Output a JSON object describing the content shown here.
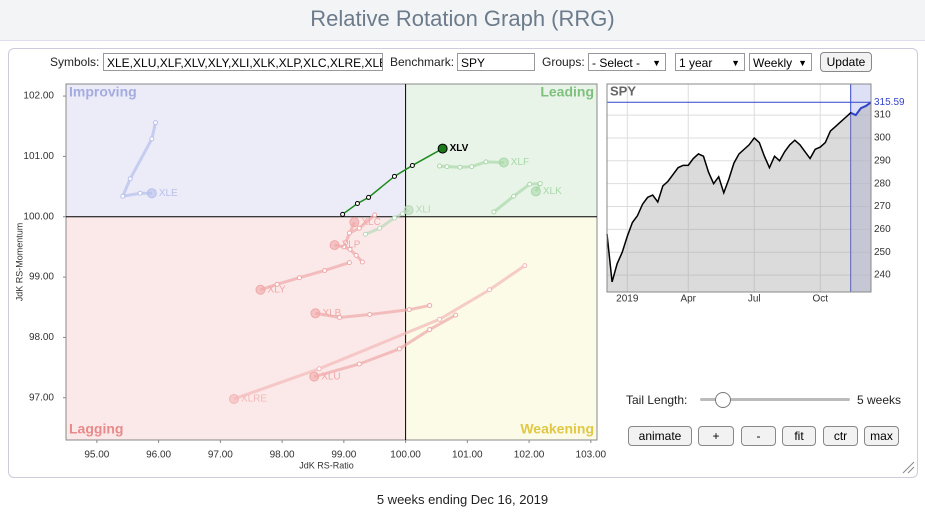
{
  "header": {
    "title": "Relative Rotation Graph (RRG)"
  },
  "controls": {
    "symbols_label": "Symbols:",
    "symbols": "XLE,XLU,XLF,XLV,XLY,XLI,XLK,XLP,XLC,XLRE,XLB",
    "benchmark_label": "Benchmark:",
    "benchmark": "SPY",
    "groups_label": "Groups:",
    "groups": "- Select -",
    "period": "1 year",
    "interval": "Weekly",
    "update": "Update",
    "tail_length_label": "Tail Length:",
    "tail_length": "5 weeks",
    "buttons": [
      "animate",
      "+",
      "-",
      "fit",
      "ctr",
      "max"
    ]
  },
  "chart_data": [
    {
      "type": "scatter",
      "xlabel": "JdK RS-Ratio",
      "ylabel": "JdK RS-Momentum",
      "quadrant_labels": {
        "top_left": "Improving",
        "top_right": "Leading",
        "bottom_left": "Lagging",
        "bottom_right": "Weakening"
      },
      "xlim": [
        94.5,
        103.1
      ],
      "ylim": [
        96.3,
        102.2
      ],
      "xticks": [
        {
          "value": 95,
          "label": "95.00"
        },
        {
          "value": 96,
          "label": "96.00"
        },
        {
          "value": 97,
          "label": "97.00"
        },
        {
          "value": 98,
          "label": "98.00"
        },
        {
          "value": 99,
          "label": "99.00"
        },
        {
          "value": 100,
          "label": "100.00"
        },
        {
          "value": 101,
          "label": "101.00"
        },
        {
          "value": 102,
          "label": "102.00"
        },
        {
          "value": 103,
          "label": "103.00"
        }
      ],
      "yticks": [
        {
          "value": 97,
          "label": "97.00"
        },
        {
          "value": 98,
          "label": "98.00"
        },
        {
          "value": 99,
          "label": "99.00"
        },
        {
          "value": 100,
          "label": "100.00"
        },
        {
          "value": 101,
          "label": "101.00"
        },
        {
          "value": 102,
          "label": "102.00"
        }
      ],
      "series": [
        {
          "name": "XLE",
          "color": "#b8c0ec",
          "x": [
            95.95,
            95.89,
            95.54,
            95.42,
            95.7,
            95.89
          ],
          "y": [
            101.56,
            101.29,
            100.63,
            100.34,
            100.39,
            100.39
          ]
        },
        {
          "name": "XLF",
          "color": "#a8d8a8",
          "x": [
            100.55,
            100.67,
            100.88,
            101.07,
            101.3,
            101.59
          ],
          "y": [
            100.84,
            100.83,
            100.82,
            100.83,
            100.91,
            100.9
          ]
        },
        {
          "name": "XLK",
          "color": "#a8d8a8",
          "x": [
            101.43,
            101.75,
            102.01,
            102.18,
            102.11
          ],
          "y": [
            100.08,
            100.34,
            100.54,
            100.55,
            100.42
          ]
        },
        {
          "name": "XLI",
          "color": "#b8d8b8",
          "x": [
            99.35,
            99.58,
            99.82,
            99.95,
            100.05
          ],
          "y": [
            99.71,
            99.81,
            99.98,
            100.05,
            100.11
          ]
        },
        {
          "name": "XLC",
          "color": "#f0a8a8",
          "x": [
            99.5,
            99.25,
            99.09,
            99.03,
            99.17
          ],
          "y": [
            100.03,
            99.81,
            99.73,
            99.57,
            99.91
          ]
        },
        {
          "name": "XLP",
          "color": "#f0a8a8",
          "x": [
            99.3,
            99.2,
            99.1,
            99.0,
            98.85
          ],
          "y": [
            99.25,
            99.36,
            99.46,
            99.5,
            99.53
          ]
        },
        {
          "name": "XLY",
          "color": "#f0a8a8",
          "x": [
            99.09,
            98.69,
            98.28,
            97.92,
            97.65
          ],
          "y": [
            99.24,
            99.11,
            98.99,
            98.88,
            98.79
          ]
        },
        {
          "name": "XLB",
          "color": "#f0a8a8",
          "x": [
            100.39,
            100.06,
            99.42,
            98.93,
            98.54
          ],
          "y": [
            98.53,
            98.46,
            98.38,
            98.33,
            98.4
          ]
        },
        {
          "name": "XLU",
          "color": "#f0a8a8",
          "x": [
            100.81,
            100.39,
            99.9,
            99.25,
            98.52
          ],
          "y": [
            98.37,
            98.13,
            97.81,
            97.56,
            97.35
          ]
        },
        {
          "name": "XLRE",
          "color": "#f4b8b8",
          "x": [
            101.93,
            101.36,
            100.55,
            98.6,
            97.22
          ],
          "y": [
            99.19,
            98.79,
            98.3,
            97.48,
            96.98
          ]
        },
        {
          "name": "XLV",
          "color": "#1e8a1e",
          "x": [
            98.98,
            99.22,
            99.4,
            99.82,
            100.11,
            100.6
          ],
          "y": [
            100.04,
            100.22,
            100.32,
            100.67,
            100.85,
            101.13
          ]
        }
      ]
    },
    {
      "type": "line",
      "title": "SPY",
      "color": "#000000",
      "highlight_color": "#3344cc",
      "categories": [
        null,
        null,
        null,
        null,
        "2019",
        null,
        null,
        null,
        null,
        null,
        null,
        null,
        null,
        null,
        null,
        null,
        "Apr",
        null,
        null,
        null,
        null,
        null,
        null,
        null,
        null,
        null,
        null,
        null,
        null,
        "Jul",
        null,
        null,
        null,
        null,
        null,
        null,
        null,
        null,
        null,
        null,
        null,
        null,
        "Oct",
        null,
        null,
        null,
        null,
        null,
        null,
        null,
        null,
        null,
        null
      ],
      "values": [
        258,
        237,
        245,
        250,
        257,
        263,
        266,
        271,
        274,
        275,
        272,
        279,
        281,
        284,
        287,
        288,
        288,
        291,
        293,
        292,
        285,
        280,
        283,
        276,
        282,
        289,
        293,
        295,
        297,
        300,
        298,
        292,
        287,
        292,
        290,
        294,
        297,
        299,
        297,
        294,
        291,
        295,
        296,
        298,
        303,
        305,
        307,
        309,
        311,
        310,
        313,
        314,
        315.59
      ],
      "ylim": [
        232.6,
        323.6
      ],
      "yticks": [
        240,
        250,
        260,
        270,
        280,
        290,
        300,
        310
      ]
    }
  ],
  "footer": "5 weeks ending Dec 16, 2019"
}
